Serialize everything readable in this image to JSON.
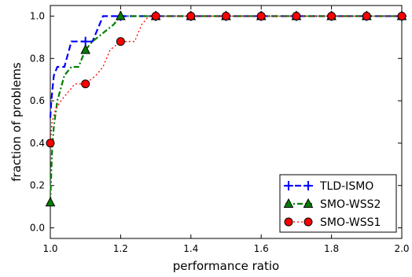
{
  "chart_data": {
    "type": "line",
    "xlabel": "performance ratio",
    "ylabel": "fraction of problems",
    "xlim": [
      1.0,
      2.0
    ],
    "ylim": [
      -0.05,
      1.05
    ],
    "x_ticks": [
      "1.0",
      "1.2",
      "1.4",
      "1.6",
      "1.8",
      "2.0"
    ],
    "y_ticks": [
      "0.0",
      "0.2",
      "0.4",
      "0.6",
      "0.8",
      "1.0"
    ],
    "grid": false,
    "legend_position": "lower-right",
    "series": [
      {
        "name": "TLD-ISMO",
        "color": "#0000ff",
        "linestyle": "dashed",
        "marker": "plus",
        "points": [
          [
            1.0,
            0.52
          ],
          [
            1.003,
            0.6
          ],
          [
            1.01,
            0.72
          ],
          [
            1.02,
            0.76
          ],
          [
            1.04,
            0.76
          ],
          [
            1.06,
            0.88
          ],
          [
            1.08,
            0.88
          ],
          [
            1.1,
            0.88
          ],
          [
            1.12,
            0.88
          ],
          [
            1.14,
            0.96
          ],
          [
            1.15,
            1.0
          ],
          [
            1.2,
            1.0
          ],
          [
            1.3,
            1.0
          ],
          [
            1.4,
            1.0
          ],
          [
            1.5,
            1.0
          ],
          [
            1.6,
            1.0
          ],
          [
            1.7,
            1.0
          ],
          [
            1.8,
            1.0
          ],
          [
            1.9,
            1.0
          ],
          [
            2.0,
            1.0
          ]
        ],
        "marker_x": [
          1.1,
          1.2,
          1.3,
          1.4,
          1.5,
          1.6,
          1.7,
          1.8,
          1.9,
          2.0
        ]
      },
      {
        "name": "SMO-WSS2",
        "color": "#008000",
        "linestyle": "dashdot",
        "marker": "triangle",
        "points": [
          [
            1.0,
            0.12
          ],
          [
            1.005,
            0.36
          ],
          [
            1.01,
            0.48
          ],
          [
            1.02,
            0.6
          ],
          [
            1.04,
            0.72
          ],
          [
            1.06,
            0.76
          ],
          [
            1.08,
            0.76
          ],
          [
            1.1,
            0.84
          ],
          [
            1.12,
            0.88
          ],
          [
            1.15,
            0.92
          ],
          [
            1.18,
            0.96
          ],
          [
            1.2,
            1.0
          ],
          [
            1.3,
            1.0
          ],
          [
            1.4,
            1.0
          ],
          [
            1.5,
            1.0
          ],
          [
            1.6,
            1.0
          ],
          [
            1.7,
            1.0
          ],
          [
            1.8,
            1.0
          ],
          [
            1.9,
            1.0
          ],
          [
            2.0,
            1.0
          ]
        ],
        "marker_x": [
          1.0,
          1.1,
          1.2,
          1.3,
          1.4,
          1.5,
          1.6,
          1.7,
          1.8,
          1.9,
          2.0
        ]
      },
      {
        "name": "SMO-WSS1",
        "color": "#ff0000",
        "linestyle": "dotted",
        "marker": "circle",
        "points": [
          [
            1.0,
            0.4
          ],
          [
            1.005,
            0.5
          ],
          [
            1.015,
            0.56
          ],
          [
            1.03,
            0.6
          ],
          [
            1.05,
            0.64
          ],
          [
            1.07,
            0.68
          ],
          [
            1.1,
            0.68
          ],
          [
            1.13,
            0.72
          ],
          [
            1.15,
            0.76
          ],
          [
            1.17,
            0.84
          ],
          [
            1.2,
            0.88
          ],
          [
            1.24,
            0.88
          ],
          [
            1.26,
            0.96
          ],
          [
            1.28,
            1.0
          ],
          [
            1.3,
            1.0
          ],
          [
            1.4,
            1.0
          ],
          [
            1.5,
            1.0
          ],
          [
            1.6,
            1.0
          ],
          [
            1.7,
            1.0
          ],
          [
            1.8,
            1.0
          ],
          [
            1.9,
            1.0
          ],
          [
            2.0,
            1.0
          ]
        ],
        "marker_x": [
          1.0,
          1.1,
          1.2,
          1.3,
          1.4,
          1.5,
          1.6,
          1.7,
          1.8,
          1.9,
          2.0
        ]
      }
    ]
  }
}
